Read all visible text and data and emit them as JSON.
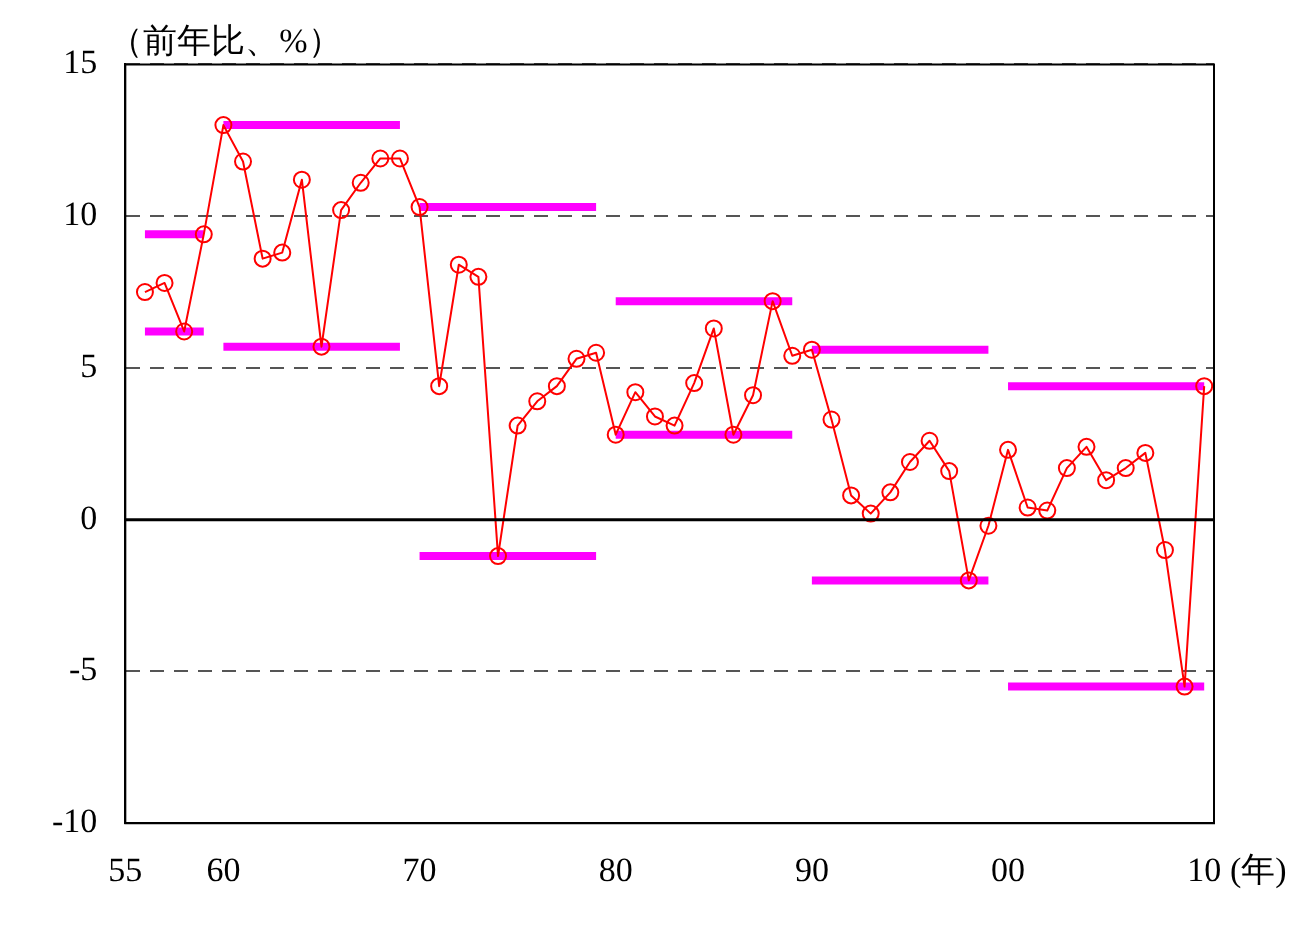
{
  "chart_data": {
    "type": "line",
    "ylabel": "（前年比、%）",
    "xlabel": "(年)",
    "xlim": [
      1955,
      2010.5
    ],
    "xticks": [
      {
        "value": 1955,
        "label": "55"
      },
      {
        "value": 1960,
        "label": "60"
      },
      {
        "value": 1970,
        "label": "70"
      },
      {
        "value": 1980,
        "label": "80"
      },
      {
        "value": 1990,
        "label": "90"
      },
      {
        "value": 2000,
        "label": "00"
      },
      {
        "value": 2010,
        "label": "10"
      }
    ],
    "ylim": [
      -10,
      15
    ],
    "yticks": [
      -10,
      -5,
      0,
      5,
      10,
      15
    ],
    "grid": "y",
    "legend": false,
    "ref_lines": [
      {
        "axis": "y",
        "value": 0,
        "color": "#000000",
        "line_style": "solid"
      }
    ],
    "series": [
      {
        "color": "#ff0000",
        "marker": "circle",
        "x": [
          1956,
          1957,
          1958,
          1959,
          1960,
          1961,
          1962,
          1963,
          1964,
          1965,
          1966,
          1967,
          1968,
          1969,
          1970,
          1971,
          1972,
          1973,
          1974,
          1975,
          1976,
          1977,
          1978,
          1979,
          1980,
          1981,
          1982,
          1983,
          1984,
          1985,
          1986,
          1987,
          1988,
          1989,
          1990,
          1991,
          1992,
          1993,
          1994,
          1995,
          1996,
          1997,
          1998,
          1999,
          2000,
          2001,
          2002,
          2003,
          2004,
          2005,
          2006,
          2007,
          2008,
          2009,
          2010
        ],
        "values": [
          7.5,
          7.8,
          6.2,
          9.4,
          13.0,
          11.8,
          8.6,
          8.8,
          11.2,
          5.7,
          10.2,
          11.1,
          11.9,
          11.9,
          10.3,
          4.4,
          8.4,
          8.0,
          -1.2,
          3.1,
          3.9,
          4.4,
          5.3,
          5.5,
          2.8,
          4.2,
          3.4,
          3.1,
          4.5,
          6.3,
          2.8,
          4.1,
          7.2,
          5.4,
          5.6,
          3.3,
          0.8,
          0.2,
          0.9,
          1.9,
          2.6,
          1.6,
          -2.0,
          -0.2,
          2.3,
          0.4,
          0.3,
          1.7,
          2.4,
          1.3,
          1.7,
          2.2,
          -1.0,
          -5.5,
          4.4
        ]
      },
      {
        "color": "#ff00ff",
        "marker": "none",
        "x": [
          1956,
          1959
        ],
        "values": [
          9.4,
          9.4
        ]
      },
      {
        "color": "#ff00ff",
        "marker": "none",
        "x": [
          1956,
          1959
        ],
        "values": [
          6.2,
          6.2
        ]
      },
      {
        "color": "#ff00ff",
        "marker": "none",
        "x": [
          1960,
          1969
        ],
        "values": [
          13.0,
          13.0
        ]
      },
      {
        "color": "#ff00ff",
        "marker": "none",
        "x": [
          1960,
          1969
        ],
        "values": [
          5.7,
          5.7
        ]
      },
      {
        "color": "#ff00ff",
        "marker": "none",
        "x": [
          1970,
          1979
        ],
        "values": [
          10.3,
          10.3
        ]
      },
      {
        "color": "#ff00ff",
        "marker": "none",
        "x": [
          1970,
          1979
        ],
        "values": [
          -1.2,
          -1.2
        ]
      },
      {
        "color": "#ff00ff",
        "marker": "none",
        "x": [
          1980,
          1989
        ],
        "values": [
          7.2,
          7.2
        ]
      },
      {
        "color": "#ff00ff",
        "marker": "none",
        "x": [
          1980,
          1989
        ],
        "values": [
          2.8,
          2.8
        ]
      },
      {
        "color": "#ff00ff",
        "marker": "none",
        "x": [
          1990,
          1999
        ],
        "values": [
          5.6,
          5.6
        ]
      },
      {
        "color": "#ff00ff",
        "marker": "none",
        "x": [
          1990,
          1999
        ],
        "values": [
          -2.0,
          -2.0
        ]
      },
      {
        "color": "#ff00ff",
        "marker": "none",
        "x": [
          2000,
          2010
        ],
        "values": [
          4.4,
          4.4
        ]
      },
      {
        "color": "#ff00ff",
        "marker": "none",
        "x": [
          2000,
          2010
        ],
        "values": [
          -5.5,
          -5.5
        ]
      }
    ]
  }
}
